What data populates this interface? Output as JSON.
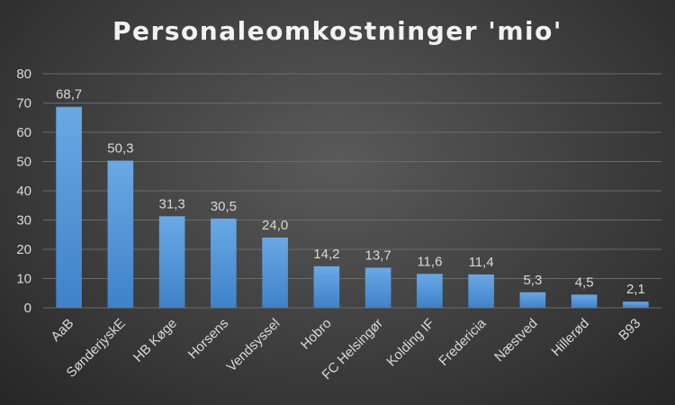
{
  "chart_data": {
    "type": "bar",
    "title": "Personaleomkostninger 'mio'",
    "categories": [
      "AaB",
      "SønderjyskE",
      "HB Køge",
      "Horsens",
      "Vendsyssel",
      "Hobro",
      "FC Helsingør",
      "Kolding IF",
      "Fredericia",
      "Næstved",
      "Hillerød",
      "B93"
    ],
    "values": [
      68.7,
      50.3,
      31.3,
      30.5,
      24.0,
      14.2,
      13.7,
      11.6,
      11.4,
      5.3,
      4.5,
      2.1
    ],
    "value_labels": [
      "68,7",
      "50,3",
      "31,3",
      "30,5",
      "24,0",
      "14,2",
      "13,7",
      "11,6",
      "11,4",
      "5,3",
      "4,5",
      "2,1"
    ],
    "y_ticks": [
      "0",
      "10",
      "20",
      "30",
      "40",
      "50",
      "60",
      "70",
      "80"
    ],
    "ylim": [
      0,
      80
    ],
    "xlabel": "",
    "ylabel": "",
    "grid": true,
    "bar_color_top": "#6aa8e6",
    "bar_color_bottom": "#3f82c8",
    "background": "#3e3e3e"
  }
}
